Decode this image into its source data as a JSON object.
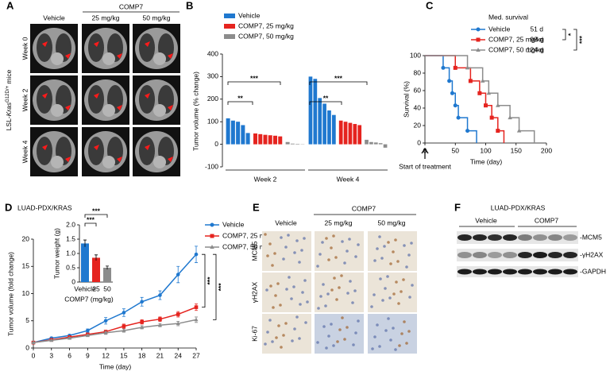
{
  "figure": {
    "panel_letters": [
      "A",
      "B",
      "C",
      "D",
      "E",
      "F"
    ],
    "panel_a": {
      "group_header": "COMP7",
      "column_headers": [
        "Vehicle",
        "25 mg/kg",
        "50 mg/kg"
      ],
      "row_labels": [
        "Week 0",
        "Week 2",
        "Week 4"
      ],
      "side_label": {
        "prefix": "LSL-",
        "gene": "Kras",
        "superscript": "G12D/+",
        "suffix": " mice"
      }
    },
    "panel_e": {
      "group_header": "COMP7",
      "column_headers": [
        "Vehicle",
        "25 mg/kg",
        "50 mg/kg"
      ],
      "row_labels": [
        "MCM5",
        "γH2AX",
        "Ki-67"
      ]
    },
    "panel_f": {
      "title": "LUAD-PDX/KRAS",
      "groups": [
        "Vehicle",
        "COMP7"
      ],
      "bands": [
        "-MCM5",
        "-γH2AX",
        "-GAPDH"
      ]
    }
  },
  "chart_data": [
    {
      "type": "bar",
      "ylabel": "Tumor volume (% change)",
      "categories": [
        "Week 2",
        "Week 4"
      ],
      "ylim": [
        -100,
        400
      ],
      "yticks": [
        -100,
        0,
        100,
        200,
        300,
        400
      ],
      "series": [
        {
          "name": "Vehicle",
          "color": "#1f78cf",
          "values": [
            [
              115,
              105,
              100,
              85,
              50
            ],
            [
              300,
              290,
              205,
              180,
              150,
              130
            ]
          ]
        },
        {
          "name": "COMP7, 25 mg/kg",
          "color": "#e5241f",
          "values": [
            [
              48,
              45,
              42,
              40,
              38,
              35
            ],
            [
              105,
              100,
              95,
              90,
              85
            ]
          ]
        },
        {
          "name": "COMP7, 50 mg/kg",
          "color": "#8c8c8c",
          "values": [
            [
              10,
              3,
              2,
              1
            ],
            [
              20,
              10,
              8,
              5,
              -15
            ]
          ]
        }
      ],
      "annotations": [
        "**",
        "***",
        "**",
        "***"
      ]
    },
    {
      "type": "step",
      "title": "Med. survival",
      "xlabel": "Time (day)",
      "ylabel": "Survival (%)",
      "annotation": "Start of treatment",
      "xlim": [
        0,
        200
      ],
      "xticks": [
        0,
        50,
        100,
        150,
        200
      ],
      "ylim": [
        0,
        100
      ],
      "yticks": [
        0,
        20,
        40,
        60,
        80,
        100
      ],
      "series": [
        {
          "name": "Vehicle",
          "color": "#1f78cf",
          "marker": "circle",
          "median": "51 d",
          "x": [
            0,
            30,
            40,
            45,
            50,
            55,
            70,
            85
          ],
          "values": [
            100,
            86,
            71,
            57,
            43,
            29,
            14,
            0
          ]
        },
        {
          "name": "COMP7, 25 mg/kg",
          "color": "#e5241f",
          "marker": "square",
          "median": "98 d",
          "x": [
            0,
            50,
            75,
            90,
            100,
            110,
            120,
            130
          ],
          "values": [
            100,
            86,
            71,
            57,
            43,
            29,
            14,
            0
          ]
        },
        {
          "name": "COMP7, 50 mg/kg",
          "color": "#8c8c8c",
          "marker": "triangle",
          "median": "124 d",
          "x": [
            0,
            70,
            95,
            105,
            120,
            140,
            155,
            180
          ],
          "values": [
            100,
            86,
            71,
            57,
            43,
            29,
            14,
            0
          ]
        }
      ],
      "significance": [
        "*",
        "***"
      ]
    },
    {
      "type": "line",
      "title": "LUAD-PDX/KRAS",
      "xlabel": "Time (day)",
      "ylabel": "Tumor volume (fold change)",
      "x": [
        0,
        3,
        6,
        9,
        12,
        15,
        18,
        21,
        24,
        27
      ],
      "xlim": [
        0,
        27
      ],
      "xticks": [
        0,
        3,
        6,
        9,
        12,
        15,
        18,
        21,
        24,
        27
      ],
      "ylim": [
        0,
        20
      ],
      "yticks": [
        0,
        5,
        10,
        15,
        20
      ],
      "series": [
        {
          "name": "Vehicle",
          "color": "#1f78cf",
          "marker": "circle",
          "values": [
            1,
            1.8,
            2.3,
            3.2,
            5,
            6.5,
            8.5,
            9.7,
            13.5,
            17.2
          ],
          "errors": [
            0.1,
            0.2,
            0.2,
            0.3,
            0.6,
            0.7,
            0.8,
            0.8,
            1.5,
            1.5
          ]
        },
        {
          "name": "COMP7, 25 mg/kg",
          "color": "#e5241f",
          "marker": "square",
          "values": [
            1,
            1.5,
            2,
            2.5,
            3,
            4,
            4.8,
            5.3,
            6.2,
            7.5
          ],
          "errors": [
            0.1,
            0.1,
            0.2,
            0.2,
            0.3,
            0.4,
            0.4,
            0.4,
            0.5,
            0.6
          ]
        },
        {
          "name": "COMP7, 50 mg/kg",
          "color": "#8c8c8c",
          "marker": "triangle",
          "values": [
            1,
            1.4,
            1.8,
            2.3,
            2.8,
            3.2,
            3.8,
            4.2,
            4.5,
            5.2
          ],
          "errors": [
            0.1,
            0.1,
            0.15,
            0.2,
            0.3,
            0.3,
            0.3,
            0.3,
            0.4,
            0.5
          ]
        }
      ],
      "significance": [
        "***",
        "***"
      ]
    },
    {
      "type": "bar",
      "xlabel": "COMP7 (mg/kg)",
      "ylabel": "Tumor weight (g)",
      "categories": [
        "Vehicle",
        "25",
        "50"
      ],
      "values": [
        1.35,
        0.85,
        0.5
      ],
      "errors": [
        0.12,
        0.1,
        0.06
      ],
      "colors": [
        "#1f78cf",
        "#e5241f",
        "#8c8c8c"
      ],
      "ylim": [
        0,
        2
      ],
      "yticks": [
        0,
        0.5,
        {
          "value": 1,
          "label": "1.0"
        },
        1.5,
        {
          "value": 2,
          "label": "2.0"
        }
      ],
      "annotations": [
        "***",
        "***"
      ]
    }
  ]
}
